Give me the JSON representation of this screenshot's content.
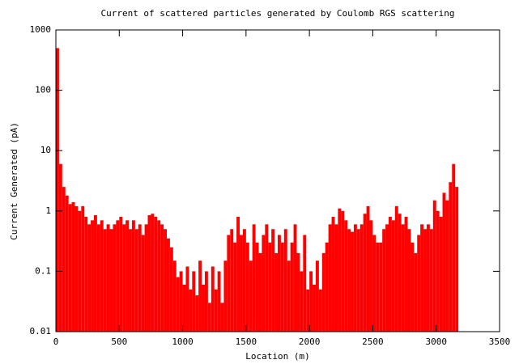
{
  "chart_data": {
    "type": "bar",
    "title": "Current of scattered particles generated by Coulomb RGS scattering",
    "xlabel": "Location (m)",
    "ylabel": "Current Generated (pA)",
    "color": "#ff0000",
    "ylog": true,
    "xlim": [
      0,
      3500
    ],
    "xticks": [
      0,
      500,
      1000,
      1500,
      2000,
      2500,
      3000,
      3500
    ],
    "ylim": [
      0.01,
      1000
    ],
    "yticks": [
      0.01,
      0.1,
      1,
      10,
      100,
      1000
    ],
    "x": [
      0,
      25,
      50,
      75,
      100,
      125,
      150,
      175,
      200,
      225,
      250,
      275,
      300,
      325,
      350,
      375,
      400,
      425,
      450,
      475,
      500,
      525,
      550,
      575,
      600,
      625,
      650,
      675,
      700,
      725,
      750,
      775,
      800,
      825,
      850,
      875,
      900,
      925,
      950,
      975,
      1000,
      1025,
      1050,
      1075,
      1100,
      1125,
      1150,
      1175,
      1200,
      1225,
      1250,
      1275,
      1300,
      1325,
      1350,
      1375,
      1400,
      1425,
      1450,
      1475,
      1500,
      1525,
      1550,
      1575,
      1600,
      1625,
      1650,
      1675,
      1700,
      1725,
      1750,
      1775,
      1800,
      1825,
      1850,
      1875,
      1900,
      1925,
      1950,
      1975,
      2000,
      2025,
      2050,
      2075,
      2100,
      2125,
      2150,
      2175,
      2200,
      2225,
      2250,
      2275,
      2300,
      2325,
      2350,
      2375,
      2400,
      2425,
      2450,
      2475,
      2500,
      2525,
      2550,
      2575,
      2600,
      2625,
      2650,
      2675,
      2700,
      2725,
      2750,
      2775,
      2800,
      2825,
      2850,
      2875,
      2900,
      2925,
      2950,
      2975,
      3000,
      3025,
      3050,
      3075,
      3100,
      3125,
      3150
    ],
    "values": [
      500,
      6,
      2.5,
      1.8,
      1.3,
      1.4,
      1.2,
      1.0,
      1.2,
      0.8,
      0.6,
      0.7,
      0.85,
      0.6,
      0.7,
      0.5,
      0.6,
      0.5,
      0.6,
      0.7,
      0.8,
      0.6,
      0.7,
      0.5,
      0.7,
      0.5,
      0.6,
      0.4,
      0.6,
      0.85,
      0.9,
      0.8,
      0.7,
      0.6,
      0.5,
      0.35,
      0.25,
      0.15,
      0.08,
      0.1,
      0.06,
      0.12,
      0.05,
      0.1,
      0.04,
      0.15,
      0.06,
      0.1,
      0.03,
      0.12,
      0.05,
      0.1,
      0.03,
      0.15,
      0.4,
      0.5,
      0.3,
      0.8,
      0.4,
      0.5,
      0.3,
      0.15,
      0.6,
      0.3,
      0.2,
      0.4,
      0.6,
      0.3,
      0.5,
      0.2,
      0.4,
      0.3,
      0.5,
      0.15,
      0.3,
      0.6,
      0.2,
      0.1,
      0.4,
      0.05,
      0.1,
      0.06,
      0.15,
      0.05,
      0.2,
      0.3,
      0.6,
      0.8,
      0.6,
      1.1,
      1.0,
      0.7,
      0.5,
      0.45,
      0.6,
      0.5,
      0.6,
      0.9,
      1.2,
      0.7,
      0.4,
      0.3,
      0.3,
      0.5,
      0.6,
      0.8,
      0.7,
      1.2,
      0.9,
      0.6,
      0.8,
      0.5,
      0.3,
      0.2,
      0.4,
      0.6,
      0.5,
      0.6,
      0.5,
      1.5,
      1.0,
      0.8,
      2.0,
      1.5,
      3,
      6,
      2.5
    ]
  }
}
